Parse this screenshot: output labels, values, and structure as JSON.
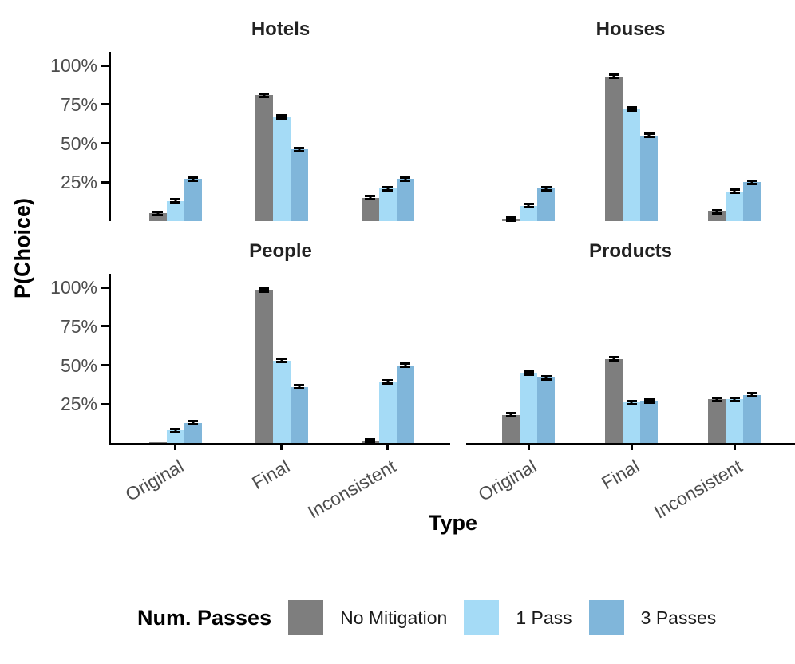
{
  "figure": {
    "y_axis_label": "P(Choice)",
    "x_axis_label": "Type"
  },
  "chart_data": {
    "type": "bar",
    "title": "",
    "xlabel": "Type",
    "ylabel": "P(Choice)",
    "ylim": [
      0,
      100
    ],
    "grid": false,
    "error_bars": true,
    "legend_position": "bottom",
    "legend_title": "Num. Passes",
    "categories": [
      "Original",
      "Final",
      "Inconsistent"
    ],
    "series_names": [
      "No Mitigation",
      "1 Pass",
      "3 Passes"
    ],
    "series_colors": [
      "#7e7e7e",
      "#a5dbf6",
      "#80b6da"
    ],
    "y_ticks": [
      {
        "value": 25,
        "label": "25%"
      },
      {
        "value": 50,
        "label": "50%"
      },
      {
        "value": 75,
        "label": "75%"
      },
      {
        "value": 100,
        "label": "100%"
      }
    ],
    "facets": [
      {
        "title": "Hotels",
        "series": [
          {
            "name": "No Mitigation",
            "values": [
              5,
              81,
              15
            ],
            "errors": [
              0.8,
              1,
              1
            ]
          },
          {
            "name": "1 Pass",
            "values": [
              13,
              67,
              21
            ],
            "errors": [
              1,
              1.5,
              1.2
            ]
          },
          {
            "name": "3 Passes",
            "values": [
              27,
              46,
              27
            ],
            "errors": [
              1.5,
              1.5,
              1.5
            ]
          }
        ]
      },
      {
        "title": "Houses",
        "series": [
          {
            "name": "No Mitigation",
            "values": [
              1.5,
              93,
              6
            ],
            "errors": [
              0.5,
              0.8,
              0.8
            ]
          },
          {
            "name": "1 Pass",
            "values": [
              10,
              72,
              19
            ],
            "errors": [
              1,
              1.2,
              1.2
            ]
          },
          {
            "name": "3 Passes",
            "values": [
              21,
              55,
              25
            ],
            "errors": [
              1.2,
              1.5,
              1.3
            ]
          }
        ]
      },
      {
        "title": "People",
        "series": [
          {
            "name": "No Mitigation",
            "values": [
              0.4,
              98,
              1.5
            ],
            "errors": [
              0,
              0.5,
              0.5
            ]
          },
          {
            "name": "1 Pass",
            "values": [
              8,
              53,
              39
            ],
            "errors": [
              0.8,
              1.3,
              1.3
            ]
          },
          {
            "name": "3 Passes",
            "values": [
              13,
              36,
              50
            ],
            "errors": [
              1,
              1.3,
              1.3
            ]
          }
        ]
      },
      {
        "title": "Products",
        "series": [
          {
            "name": "No Mitigation",
            "values": [
              18,
              54,
              28
            ],
            "errors": [
              1.2,
              1.5,
              1.3
            ]
          },
          {
            "name": "1 Pass",
            "values": [
              45,
              26,
              28
            ],
            "errors": [
              1.3,
              1.3,
              1.3
            ]
          },
          {
            "name": "3 Passes",
            "values": [
              42,
              27,
              31
            ],
            "errors": [
              1.5,
              1.5,
              1.3
            ]
          }
        ]
      }
    ]
  }
}
